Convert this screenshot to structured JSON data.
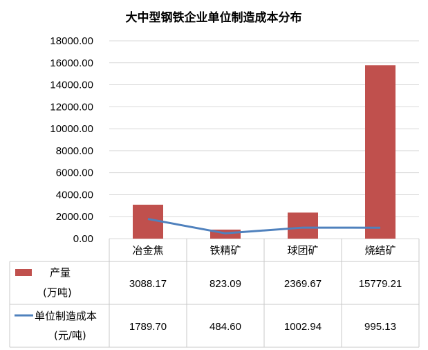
{
  "chart_data": {
    "type": "bar",
    "title": "大中型钢铁企业单位制造成本分布",
    "categories": [
      "冶金焦",
      "铁精矿",
      "球团矿",
      "烧结矿"
    ],
    "ylim": [
      0,
      18000
    ],
    "yticks": [
      "0.00",
      "2000.00",
      "4000.00",
      "6000.00",
      "8000.00",
      "10000.00",
      "12000.00",
      "14000.00",
      "16000.00",
      "18000.00"
    ],
    "grid": true,
    "series": [
      {
        "name": "产量",
        "unit": "(万吨)",
        "type": "bar",
        "color": "#C0504D",
        "values": [
          3088.17,
          823.09,
          2369.67,
          15779.21
        ],
        "labels": [
          "3088.17",
          "823.09",
          "2369.67",
          "15779.21"
        ]
      },
      {
        "name": "单位制造成本",
        "unit": "(元/吨)",
        "type": "line",
        "color": "#4F81BD",
        "values": [
          1789.7,
          484.6,
          1002.94,
          995.13
        ],
        "labels": [
          "1789.70",
          "484.60",
          "1002.94",
          "995.13"
        ]
      }
    ]
  }
}
